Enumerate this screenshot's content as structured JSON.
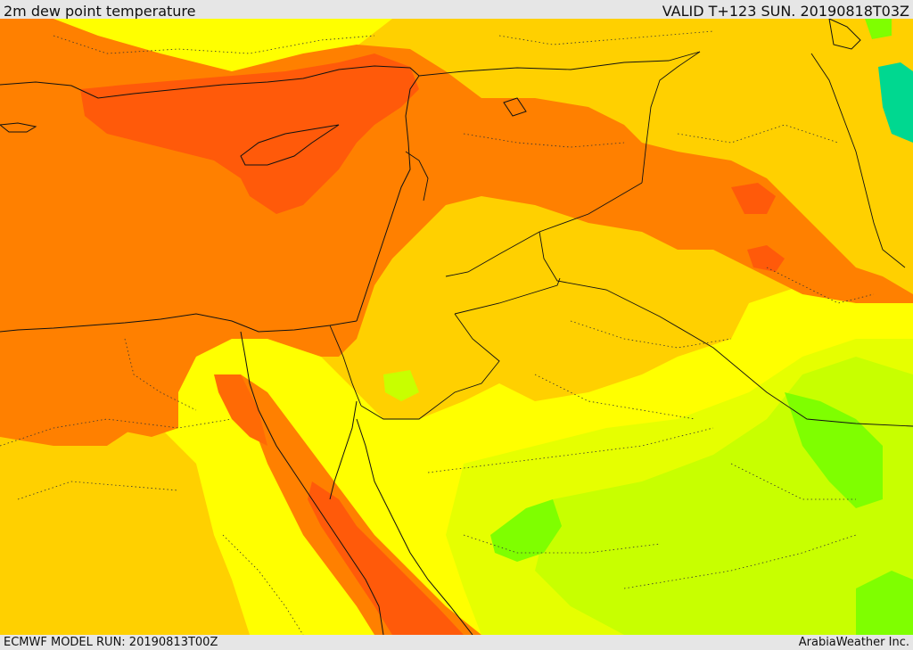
{
  "header": {
    "title": "2m dew point temperature",
    "valid": "VALID T+123 SUN. 20190818T03Z"
  },
  "footer": {
    "model_run": "ECMWF MODEL RUN: 20190813T00Z",
    "credit": "ArabiaWeather Inc."
  },
  "palette": {
    "dark_orange": "#ff5a0a",
    "orange": "#ff7f00",
    "light_orange": "#ff9a00",
    "gold": "#ffd000",
    "yellow": "#ffff00",
    "yellow_green": "#e6ff00",
    "lime": "#c8ff00",
    "green": "#7fff00",
    "bright_green": "#40e040",
    "teal": "#00d890"
  }
}
